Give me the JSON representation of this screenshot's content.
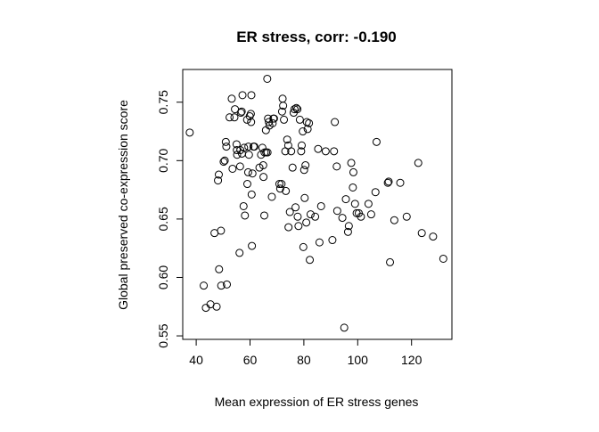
{
  "chart_data": {
    "type": "scatter",
    "title": "ER stress, corr: -0.190",
    "xlabel": "Mean expression of ER stress genes",
    "ylabel": "Global preserved co-expression score",
    "xlim": [
      35,
      135
    ],
    "ylim": [
      0.547,
      0.778
    ],
    "xticks": [
      40,
      60,
      80,
      100,
      120
    ],
    "yticks": [
      0.55,
      0.6,
      0.65,
      0.7,
      0.75
    ],
    "xtick_labels": [
      "40",
      "60",
      "80",
      "100",
      "120"
    ],
    "ytick_labels": [
      "0.55",
      "0.60",
      "0.65",
      "0.70",
      "0.75"
    ],
    "marker": "open-circle",
    "grid": false,
    "points": [
      [
        37.6,
        0.724
      ],
      [
        42.8,
        0.593
      ],
      [
        43.6,
        0.574
      ],
      [
        45.3,
        0.577
      ],
      [
        46.8,
        0.638
      ],
      [
        47.6,
        0.575
      ],
      [
        48.1,
        0.683
      ],
      [
        48.4,
        0.688
      ],
      [
        48.5,
        0.607
      ],
      [
        49.2,
        0.64
      ],
      [
        49.3,
        0.593
      ],
      [
        50.2,
        0.699
      ],
      [
        50.6,
        0.7
      ],
      [
        51.0,
        0.716
      ],
      [
        51.2,
        0.712
      ],
      [
        51.4,
        0.594
      ],
      [
        52.4,
        0.737
      ],
      [
        53.2,
        0.753
      ],
      [
        53.5,
        0.693
      ],
      [
        54.2,
        0.737
      ],
      [
        54.4,
        0.744
      ],
      [
        55.0,
        0.714
      ],
      [
        55.1,
        0.709
      ],
      [
        55.2,
        0.705
      ],
      [
        56.1,
        0.621
      ],
      [
        56.3,
        0.695
      ],
      [
        56.4,
        0.709
      ],
      [
        56.6,
        0.741
      ],
      [
        56.9,
        0.742
      ],
      [
        57.0,
        0.706
      ],
      [
        57.2,
        0.756
      ],
      [
        57.6,
        0.661
      ],
      [
        57.8,
        0.711
      ],
      [
        58.1,
        0.653
      ],
      [
        58.9,
        0.735
      ],
      [
        59.0,
        0.68
      ],
      [
        59.3,
        0.69
      ],
      [
        59.4,
        0.712
      ],
      [
        59.6,
        0.705
      ],
      [
        59.9,
        0.738
      ],
      [
        60.3,
        0.74
      ],
      [
        60.4,
        0.733
      ],
      [
        60.5,
        0.756
      ],
      [
        60.6,
        0.671
      ],
      [
        60.7,
        0.627
      ],
      [
        60.9,
        0.689
      ],
      [
        61.3,
        0.712
      ],
      [
        61.6,
        0.712
      ],
      [
        63.5,
        0.694
      ],
      [
        64.1,
        0.705
      ],
      [
        64.6,
        0.711
      ],
      [
        64.9,
        0.696
      ],
      [
        65.0,
        0.686
      ],
      [
        65.3,
        0.653
      ],
      [
        65.4,
        0.707
      ],
      [
        65.9,
        0.726
      ],
      [
        66.0,
        0.707
      ],
      [
        66.4,
        0.77
      ],
      [
        66.5,
        0.707
      ],
      [
        66.7,
        0.736
      ],
      [
        67.0,
        0.733
      ],
      [
        67.2,
        0.73
      ],
      [
        68.1,
        0.669
      ],
      [
        68.4,
        0.732
      ],
      [
        68.7,
        0.736
      ],
      [
        68.9,
        0.736
      ],
      [
        70.9,
        0.68
      ],
      [
        71.2,
        0.676
      ],
      [
        71.7,
        0.68
      ],
      [
        71.9,
        0.742
      ],
      [
        72.1,
        0.753
      ],
      [
        72.3,
        0.747
      ],
      [
        72.6,
        0.735
      ],
      [
        73.1,
        0.708
      ],
      [
        73.3,
        0.674
      ],
      [
        73.8,
        0.718
      ],
      [
        74.2,
        0.713
      ],
      [
        74.3,
        0.643
      ],
      [
        74.8,
        0.656
      ],
      [
        75.3,
        0.708
      ],
      [
        75.8,
        0.694
      ],
      [
        76.2,
        0.741
      ],
      [
        76.5,
        0.744
      ],
      [
        76.9,
        0.66
      ],
      [
        77.2,
        0.745
      ],
      [
        77.6,
        0.744
      ],
      [
        77.7,
        0.652
      ],
      [
        78.0,
        0.644
      ],
      [
        78.5,
        0.735
      ],
      [
        79.0,
        0.708
      ],
      [
        79.2,
        0.713
      ],
      [
        79.6,
        0.725
      ],
      [
        79.8,
        0.626
      ],
      [
        80.1,
        0.692
      ],
      [
        80.3,
        0.668
      ],
      [
        80.6,
        0.696
      ],
      [
        80.9,
        0.647
      ],
      [
        81.1,
        0.733
      ],
      [
        81.4,
        0.727
      ],
      [
        81.9,
        0.732
      ],
      [
        82.2,
        0.615
      ],
      [
        82.5,
        0.654
      ],
      [
        84.2,
        0.652
      ],
      [
        85.3,
        0.71
      ],
      [
        85.8,
        0.63
      ],
      [
        86.4,
        0.661
      ],
      [
        88.1,
        0.708
      ],
      [
        90.6,
        0.632
      ],
      [
        91.2,
        0.708
      ],
      [
        91.5,
        0.733
      ],
      [
        92.2,
        0.695
      ],
      [
        92.4,
        0.657
      ],
      [
        94.3,
        0.651
      ],
      [
        95.0,
        0.557
      ],
      [
        95.6,
        0.667
      ],
      [
        96.4,
        0.639
      ],
      [
        96.7,
        0.644
      ],
      [
        97.6,
        0.698
      ],
      [
        98.2,
        0.677
      ],
      [
        98.4,
        0.69
      ],
      [
        99.0,
        0.663
      ],
      [
        99.6,
        0.655
      ],
      [
        100.4,
        0.655
      ],
      [
        101.2,
        0.652
      ],
      [
        104.0,
        0.663
      ],
      [
        105.0,
        0.654
      ],
      [
        106.6,
        0.673
      ],
      [
        107.0,
        0.716
      ],
      [
        111.2,
        0.681
      ],
      [
        111.5,
        0.682
      ],
      [
        112.0,
        0.613
      ],
      [
        113.6,
        0.649
      ],
      [
        115.8,
        0.681
      ],
      [
        118.2,
        0.652
      ],
      [
        122.5,
        0.698
      ],
      [
        123.8,
        0.638
      ],
      [
        128.0,
        0.635
      ],
      [
        131.8,
        0.616
      ]
    ]
  }
}
